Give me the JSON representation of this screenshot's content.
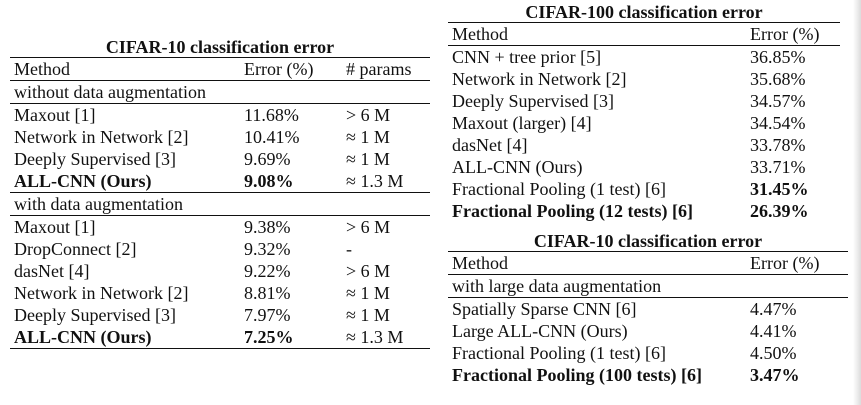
{
  "cifar10_main": {
    "title": "CIFAR-10 classification error",
    "headers": [
      "Method",
      "Error (%)",
      "# params"
    ],
    "sections": [
      {
        "label": "without data augmentation",
        "rows": [
          {
            "method": "Maxout [1]",
            "error": "11.68%",
            "params": "> 6 M",
            "bold": false
          },
          {
            "method": "Network in Network [2]",
            "error": "10.41%",
            "params": "≈ 1 M",
            "bold": false
          },
          {
            "method": "Deeply Supervised [3]",
            "error": "9.69%",
            "params": "≈ 1 M",
            "bold": false
          },
          {
            "method": "ALL-CNN (Ours)",
            "error": "9.08%",
            "params": "≈ 1.3 M",
            "bold": true
          }
        ]
      },
      {
        "label": "with data augmentation",
        "rows": [
          {
            "method": "Maxout [1]",
            "error": "9.38%",
            "params": "> 6 M",
            "bold": false
          },
          {
            "method": "DropConnect [2]",
            "error": "9.32%",
            "params": "-",
            "bold": false
          },
          {
            "method": "dasNet [4]",
            "error": "9.22%",
            "params": "> 6 M",
            "bold": false
          },
          {
            "method": "Network in Network [2]",
            "error": "8.81%",
            "params": "≈ 1 M",
            "bold": false
          },
          {
            "method": "Deeply Supervised [3]",
            "error": "7.97%",
            "params": "≈ 1 M",
            "bold": false
          },
          {
            "method": "ALL-CNN (Ours)",
            "error": "7.25%",
            "params": "≈ 1.3 M",
            "bold": true
          }
        ]
      }
    ]
  },
  "cifar100": {
    "title": "CIFAR-100 classification error",
    "headers": [
      "Method",
      "Error (%)"
    ],
    "rows": [
      {
        "method": "CNN + tree prior [5]",
        "error": "36.85%",
        "bold": false
      },
      {
        "method": "Network in Network [2]",
        "error": "35.68%",
        "bold": false
      },
      {
        "method": "Deeply Supervised [3]",
        "error": "34.57%",
        "bold": false
      },
      {
        "method": "Maxout (larger) [4]",
        "error": "34.54%",
        "bold": false
      },
      {
        "method": "dasNet [4]",
        "error": "33.78%",
        "bold": false
      },
      {
        "method": "ALL-CNN (Ours)",
        "error": "33.71%",
        "bold": false
      },
      {
        "method": "Fractional Pooling (1 test) [6]",
        "error": "31.45%",
        "bold": false,
        "bold_error": true
      },
      {
        "method": "Fractional Pooling (12 tests) [6]",
        "error": "26.39%",
        "bold": true
      }
    ]
  },
  "cifar10_large": {
    "title": "CIFAR-10 classification error",
    "headers": [
      "Method",
      "Error (%)"
    ],
    "section_label": "with large data augmentation",
    "rows": [
      {
        "method": "Spatially Sparse CNN [6]",
        "error": "4.47%",
        "bold": false
      },
      {
        "method": "Large ALL-CNN (Ours)",
        "error": "4.41%",
        "bold": false
      },
      {
        "method": "Fractional Pooling (1 test) [6]",
        "error": "4.50%",
        "bold": false
      },
      {
        "method": "Fractional Pooling (100 tests) [6]",
        "error": "3.47%",
        "bold": true
      }
    ]
  }
}
